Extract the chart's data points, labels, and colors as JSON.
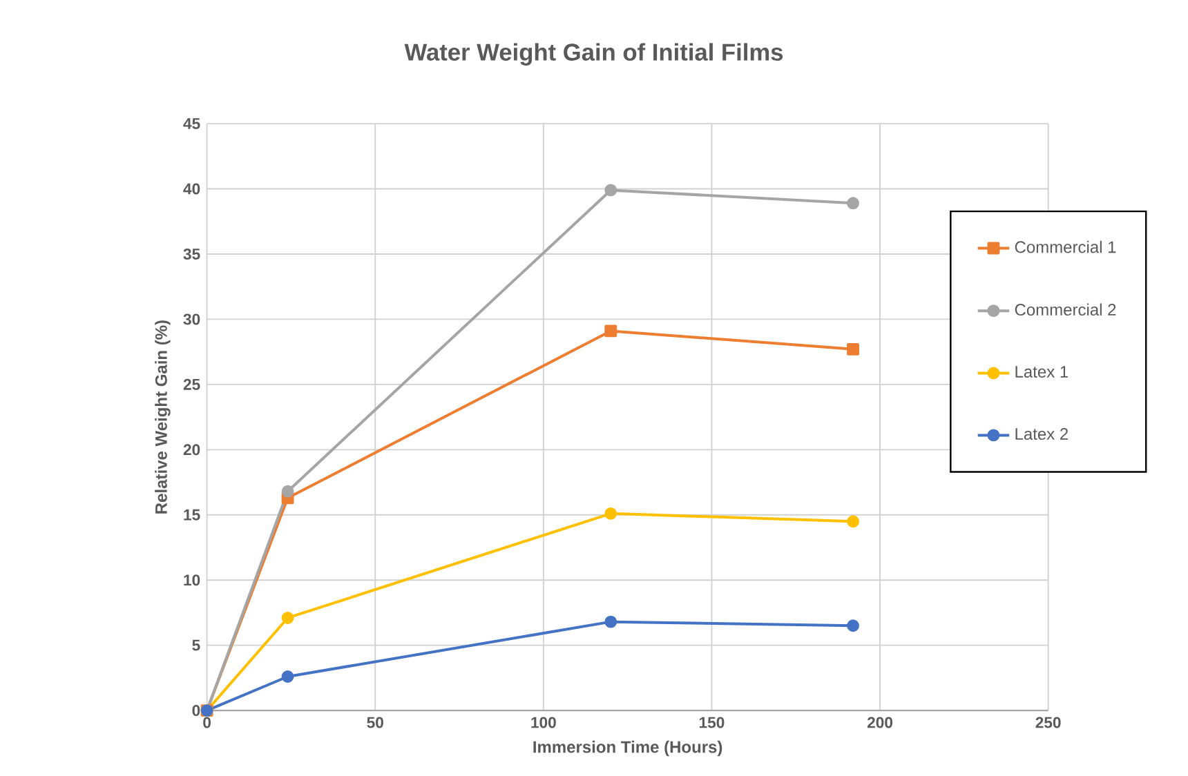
{
  "chart_data": {
    "type": "line",
    "title": "Water Weight Gain of Initial Films",
    "xlabel": "Immersion Time (Hours)",
    "ylabel": "Relative Weight Gain (%)",
    "xlim": [
      0,
      250
    ],
    "xticks": [
      0,
      50,
      100,
      150,
      200,
      250
    ],
    "ylim": [
      0,
      45
    ],
    "yticks": [
      0,
      5,
      10,
      15,
      20,
      25,
      30,
      35,
      40,
      45
    ],
    "grid": true,
    "legend": "right",
    "marker": "circle",
    "line_style": "solid",
    "series": [
      {
        "name": "Commercial 1",
        "color": "#ed7d31",
        "marker": "square",
        "x": [
          0,
          24,
          120,
          192
        ],
        "values": [
          0,
          16.3,
          29.1,
          27.7
        ]
      },
      {
        "name": "Commercial 2",
        "color": "#a5a5a5",
        "x": [
          0,
          24,
          120,
          192
        ],
        "values": [
          0,
          16.8,
          39.9,
          38.9
        ]
      },
      {
        "name": "Latex 1",
        "color": "#ffc000",
        "x": [
          0,
          24,
          120,
          192
        ],
        "values": [
          0,
          7.1,
          15.1,
          14.5
        ]
      },
      {
        "name": "Latex 2",
        "color": "#4472c4",
        "x": [
          0,
          24,
          120,
          192
        ],
        "values": [
          0,
          2.6,
          6.8,
          6.5
        ]
      }
    ]
  }
}
